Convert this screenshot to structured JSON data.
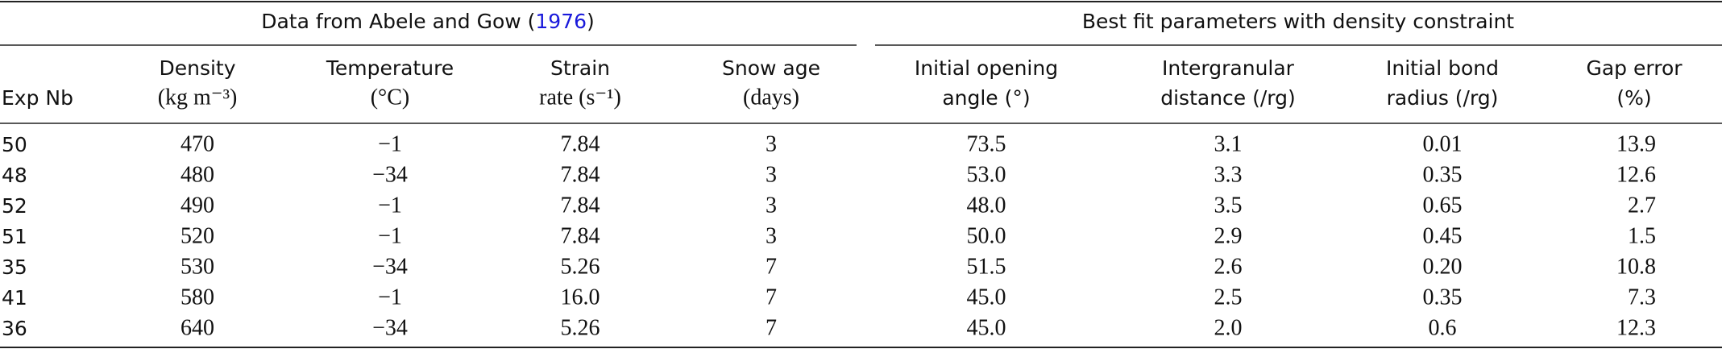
{
  "header": {
    "left_group": {
      "prefix": "Data from Abele and Gow (",
      "cite": "1976",
      "suffix": ")"
    },
    "right_group": "Best fit parameters with density constraint"
  },
  "table": {
    "columns": [
      [
        "Exp Nb"
      ],
      [
        "Density",
        "(kg m⁻³)"
      ],
      [
        "Temperature",
        "(°C)"
      ],
      [
        "Strain",
        "rate (s⁻¹)"
      ],
      [
        "Snow age",
        "(days)"
      ],
      [
        "Initial opening",
        "angle (°)"
      ],
      [
        "Intergranular",
        "distance (/rg)"
      ],
      [
        "Initial bond",
        "radius (/rg)"
      ],
      [
        "Gap error",
        "(%)"
      ]
    ],
    "rows": [
      [
        "50",
        "470",
        "−1",
        "7.84",
        "3",
        "73.5",
        "3.1",
        "0.01",
        "13.9"
      ],
      [
        "48",
        "480",
        "−34",
        "7.84",
        "3",
        "53.0",
        "3.3",
        "0.35",
        "12.6"
      ],
      [
        "52",
        "490",
        "−1",
        "7.84",
        "3",
        "48.0",
        "3.5",
        "0.65",
        "2.7"
      ],
      [
        "51",
        "520",
        "−1",
        "7.84",
        "3",
        "50.0",
        "2.9",
        "0.45",
        "1.5"
      ],
      [
        "35",
        "530",
        "−34",
        "5.26",
        "7",
        "51.5",
        "2.6",
        "0.20",
        "10.8"
      ],
      [
        "41",
        "580",
        "−1",
        "16.0",
        "7",
        "45.0",
        "2.5",
        "0.35",
        "7.3"
      ],
      [
        "36",
        "640",
        "−34",
        "5.26",
        "7",
        "45.0",
        "2.0",
        "0.6",
        "12.3"
      ]
    ]
  }
}
